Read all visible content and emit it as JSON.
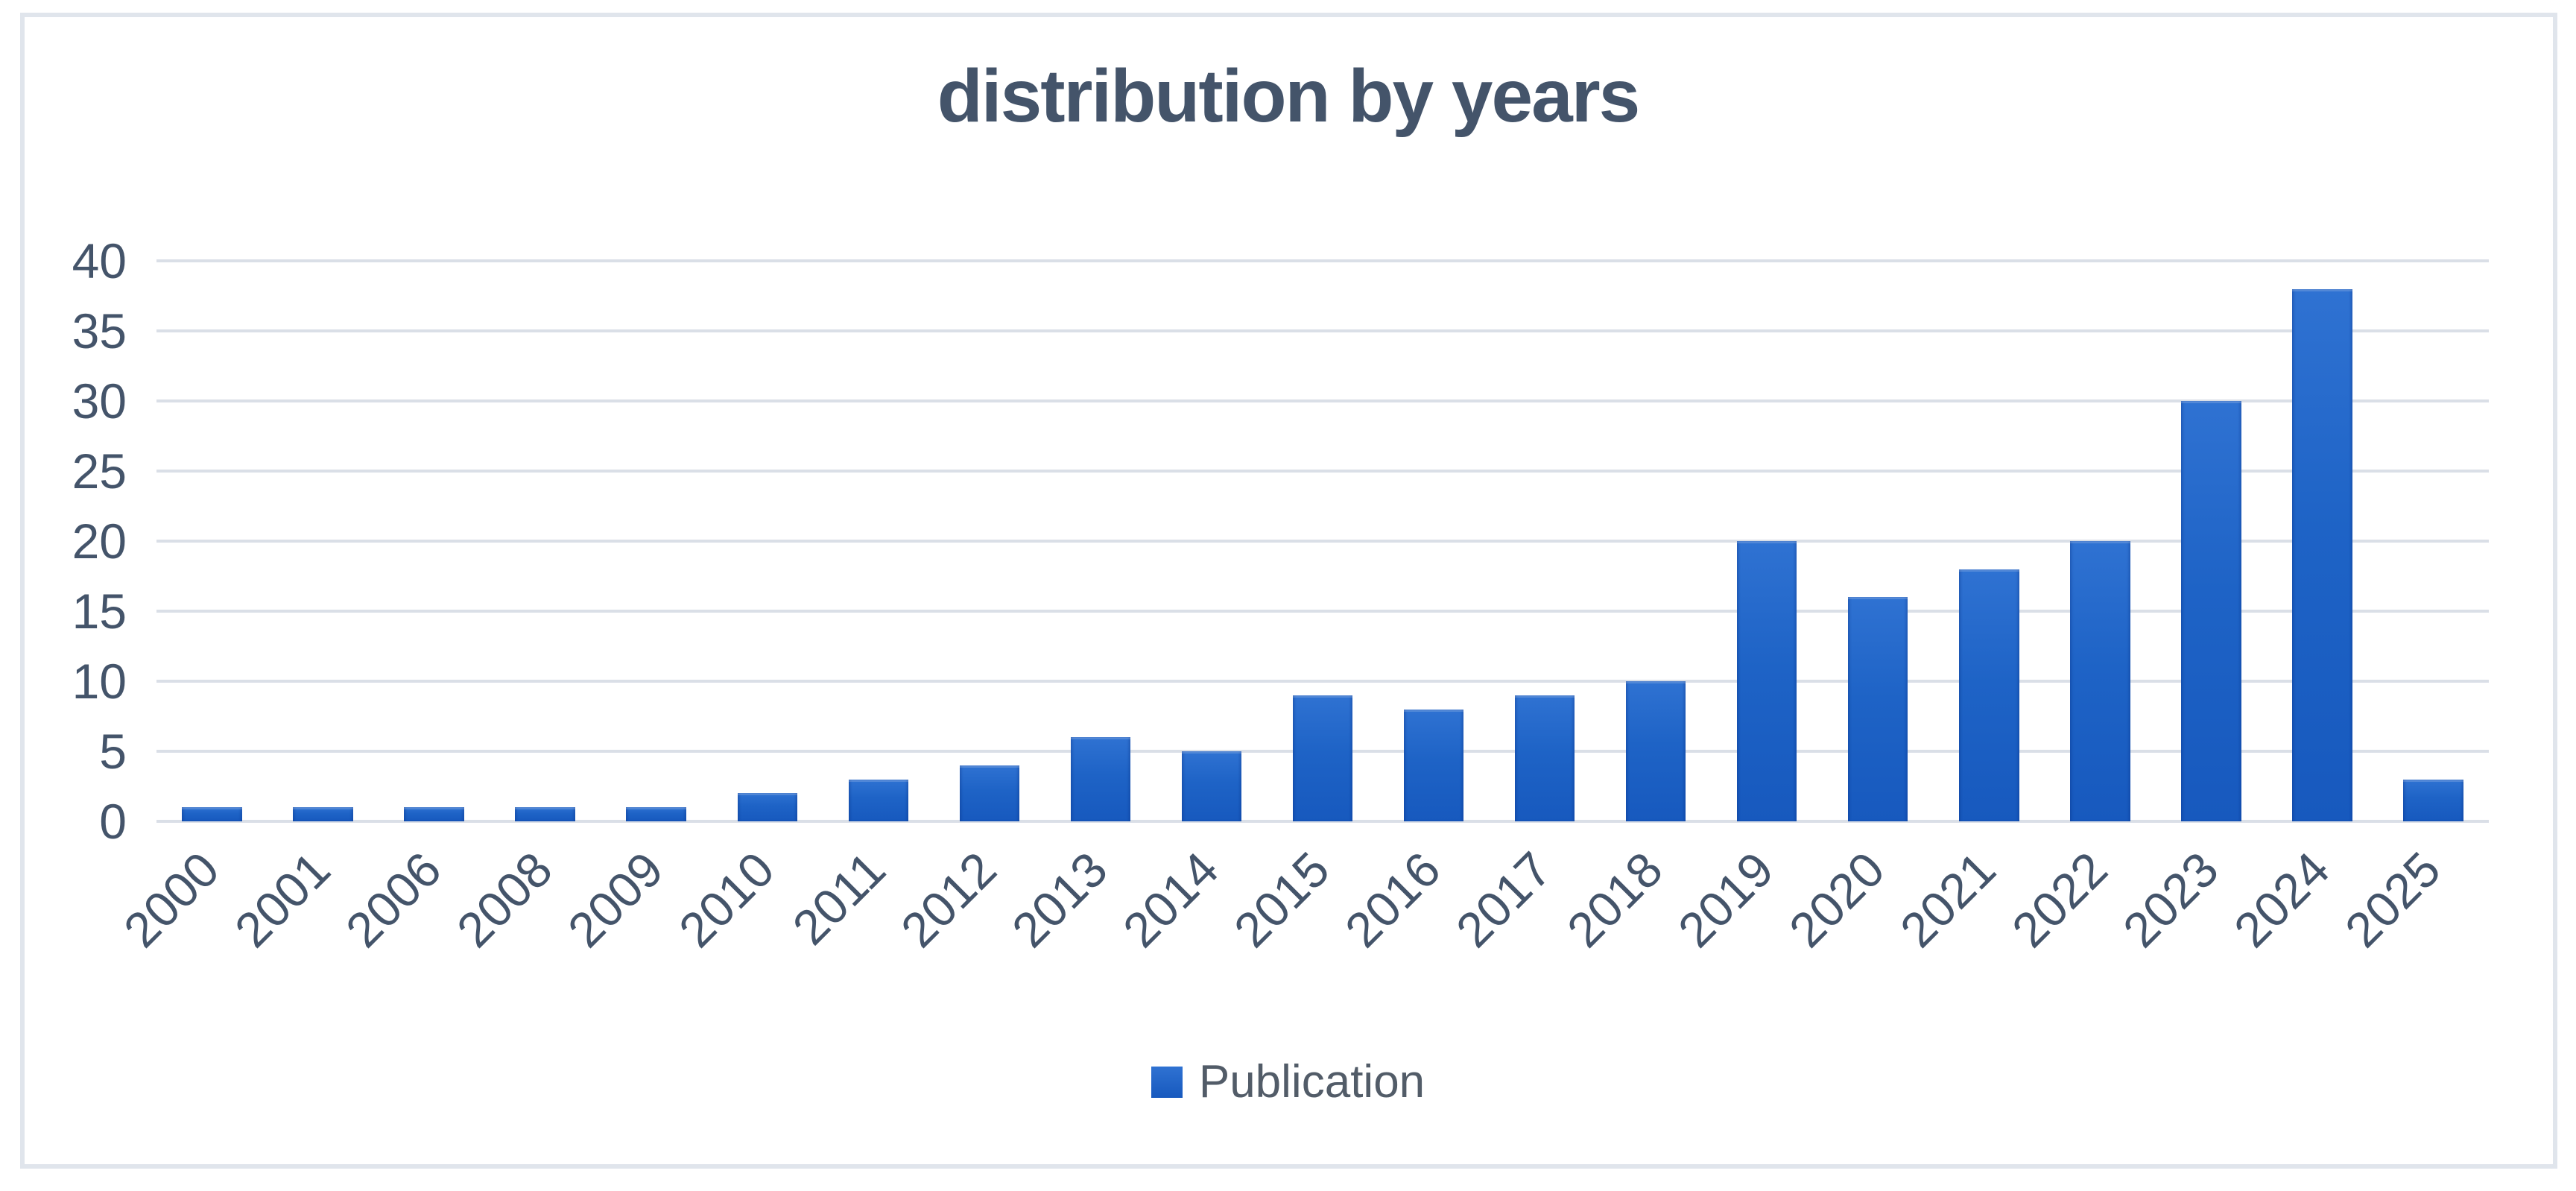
{
  "chart_data": {
    "type": "bar",
    "title": "distribution by years",
    "categories": [
      "2000",
      "2001",
      "2006",
      "2008",
      "2009",
      "2010",
      "2011",
      "2012",
      "2013",
      "2014",
      "2015",
      "2016",
      "2017",
      "2018",
      "2019",
      "2020",
      "2021",
      "2022",
      "2023",
      "2024",
      "2025"
    ],
    "series": [
      {
        "name": "Publication",
        "values": [
          1,
          1,
          1,
          1,
          1,
          2,
          3,
          4,
          6,
          5,
          9,
          8,
          9,
          10,
          20,
          16,
          18,
          20,
          30,
          38,
          3
        ]
      }
    ],
    "xlabel": "",
    "ylabel": "",
    "ylim": [
      0,
      40
    ],
    "yticks": [
      0,
      5,
      10,
      15,
      20,
      25,
      30,
      35,
      40
    ],
    "grid": "horizontal",
    "legend_position": "bottom"
  },
  "legend": {
    "label": "Publication"
  },
  "colors": {
    "bar_top": "#2F72D2",
    "bar_mid": "#1E63C6",
    "bar_bottom": "#1759BE",
    "title_text": "#44546A",
    "axis_text": "#44546A",
    "legend_text": "#525C68",
    "gridline": "#DADFE7",
    "frame_border": "#E0E5EC",
    "background": "#FFFFFF"
  }
}
